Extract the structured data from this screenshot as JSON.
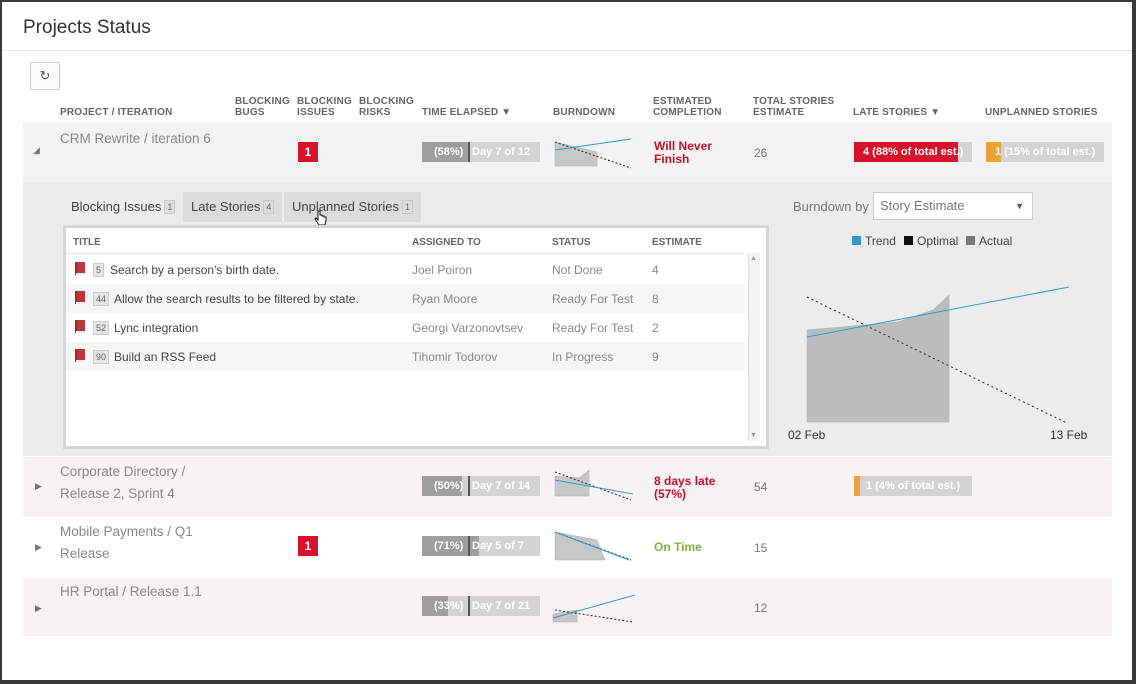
{
  "page": {
    "title": "Projects Status"
  },
  "toolbar": {
    "refresh_icon": "↻"
  },
  "columns": {
    "project": "PROJECT / ITERATION",
    "blocking_bugs": [
      "BLOCKING",
      "BUGS"
    ],
    "blocking_issues": [
      "BLOCKING",
      "ISSUES"
    ],
    "blocking_risks": [
      "BLOCKING",
      "RISKS"
    ],
    "time_elapsed": "TIME ELAPSED ▼",
    "burndown": "BURNDOWN",
    "estimated_completion": [
      "ESTIMATED",
      "COMPLETION"
    ],
    "total_stories": [
      "TOTAL STORIES",
      "ESTIMATE"
    ],
    "late_stories": "LATE STORIES ▼",
    "unplanned_stories": "UNPLANNED STORIES"
  },
  "projects": [
    {
      "name": [
        "CRM Rewrite / iteration 6",
        ""
      ],
      "expanded": true,
      "blocking_issues": "1",
      "time_pct_label": "(58%)",
      "time_day_label": "Day 7 of 12",
      "time_fraction": 0.58,
      "est_completion": [
        "Will Never",
        "Finish"
      ],
      "est_color": "#c0102a",
      "total": "26",
      "late": "4 (88% of total est.)",
      "late_fraction": 0.88,
      "unplanned": "1 (15% of total est.)",
      "unplanned_fraction": 0.15
    },
    {
      "name": [
        "Corporate Directory /",
        "Release 2, Sprint 4"
      ],
      "expanded": false,
      "blocking_issues": "",
      "time_pct_label": "(50%)",
      "time_day_label": "Day 7 of 14",
      "time_fraction": 0.5,
      "est_completion": [
        "8 days late",
        "(57%)"
      ],
      "est_color": "#c0102a",
      "total": "54",
      "late": "1 (4% of total est.)",
      "late_fraction": 0.04,
      "unplanned": "",
      "unplanned_fraction": 0
    },
    {
      "name": [
        "Mobile Payments / Q1",
        "Release"
      ],
      "expanded": false,
      "blocking_issues": "1",
      "time_pct_label": "(71%)",
      "time_day_label": "Day 5 of 7",
      "time_fraction": 0.71,
      "est_completion": [
        "On Time",
        ""
      ],
      "est_color": "#7cb342",
      "total": "15",
      "late": "",
      "late_fraction": 0,
      "unplanned": "",
      "unplanned_fraction": 0
    },
    {
      "name": [
        "HR Portal / Release 1.1",
        ""
      ],
      "expanded": false,
      "blocking_issues": "",
      "time_pct_label": "(33%)",
      "time_day_label": "Day 7 of 21",
      "time_fraction": 0.33,
      "est_completion": [
        "",
        ""
      ],
      "est_color": "#777",
      "total": "12",
      "late": "",
      "late_fraction": 0,
      "unplanned": "",
      "unplanned_fraction": 0
    }
  ],
  "detail": {
    "tabs": [
      {
        "label": "Blocking Issues",
        "count": "1"
      },
      {
        "label": "Late Stories",
        "count": "4"
      },
      {
        "label": "Unplanned Stories",
        "count": "1"
      }
    ],
    "active_tab": "Late Stories",
    "grid_headers": [
      "TITLE",
      "ASSIGNED TO",
      "STATUS",
      "ESTIMATE"
    ],
    "stories": [
      {
        "id": "5",
        "title": "Search by a person's birth date.",
        "assigned": "Joel Poiron",
        "status": "Not Done",
        "estimate": "4"
      },
      {
        "id": "44",
        "title": "Allow the search results to be filtered by state.",
        "assigned": "Ryan Moore",
        "status": "Ready For Test",
        "estimate": "8"
      },
      {
        "id": "52",
        "title": "Lync integration",
        "assigned": "Georgi Varzonovtsev",
        "status": "Ready For Test",
        "estimate": "2"
      },
      {
        "id": "90",
        "title": "Build an RSS Feed",
        "assigned": "Tihomir Todorov",
        "status": "In Progress",
        "estimate": "9"
      }
    ],
    "burndown_by_label": "Burndown by",
    "burndown_by_value": "Story Estimate",
    "legend": [
      {
        "name": "Trend",
        "color": "#3399cc"
      },
      {
        "name": "Optimal",
        "color": "#111111"
      },
      {
        "name": "Actual",
        "color": "#777777"
      }
    ],
    "x_start": "02 Feb",
    "x_end": "13 Feb"
  },
  "colors": {
    "late": "#d9122b",
    "unplanned": "#f0a23a"
  }
}
